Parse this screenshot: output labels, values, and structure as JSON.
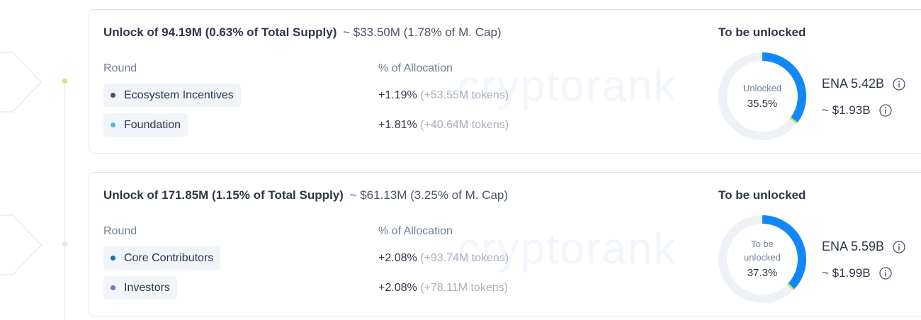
{
  "watermark": "cryptorank",
  "unlocks": [
    {
      "headline_strong": "Unlock of 94.19M (0.63% of Total Supply)",
      "headline_sub": "~ $33.50M (1.78% of M. Cap)",
      "round_label": "Round",
      "alloc_label": "% of Allocation",
      "rows": [
        {
          "name": "Ecosystem Incentives",
          "color": "#4a5066",
          "pct": "+1.19%",
          "tokens": "(+53.55M tokens)"
        },
        {
          "name": "Foundation",
          "color": "#4db8ea",
          "pct": "+1.81%",
          "tokens": "(+40.64M tokens)"
        }
      ],
      "tbu_title": "To be unlocked",
      "donut_label": "Unlocked",
      "donut_pct": "35.5%",
      "donut_fraction": 0.355,
      "token_amount": "ENA 5.42B",
      "usd_amount": "~ $1.93B"
    },
    {
      "headline_strong": "Unlock of 171.85M (1.15% of Total Supply)",
      "headline_sub": "~ $61.13M (3.25% of M. Cap)",
      "round_label": "Round",
      "alloc_label": "% of Allocation",
      "rows": [
        {
          "name": "Core Contributors",
          "color": "#1a6fa8",
          "pct": "+2.08%",
          "tokens": "(+93.74M tokens)"
        },
        {
          "name": "Investors",
          "color": "#7a6fd6",
          "pct": "+2.08%",
          "tokens": "(+78.11M tokens)"
        }
      ],
      "tbu_title": "To be unlocked",
      "donut_label_line1": "To be",
      "donut_label_line2": "unlocked",
      "donut_pct": "37.3%",
      "donut_fraction": 0.373,
      "token_amount": "ENA 5.59B",
      "usd_amount": "~ $1.99B"
    }
  ],
  "colors": {
    "accent_blue": "#1188f5",
    "track": "#eef1f5",
    "marker_green": "#c7e66b",
    "dot_inactive": "#dde6f0"
  },
  "icons": [
    "info-icon",
    "chevron-arrow-icon"
  ]
}
